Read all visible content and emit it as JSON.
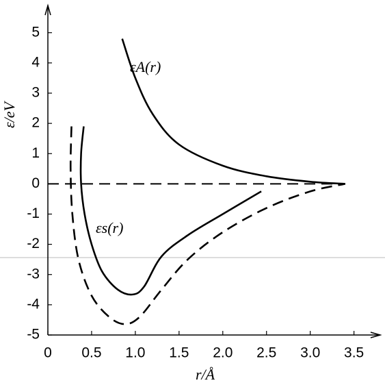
{
  "chart_data": {
    "type": "line",
    "x_label": "r/Å",
    "y_label": "ε/eV",
    "xlim": [
      0,
      3.8
    ],
    "ylim": [
      -5,
      5.9
    ],
    "xticks": [
      0,
      0.5,
      {
        "value": 1,
        "label": "1.0"
      },
      1.5,
      {
        "value": 2,
        "label": "2.0"
      },
      2.5,
      {
        "value": 3,
        "label": "3.0"
      },
      3.5
    ],
    "yticks": [
      -5,
      -4,
      -3,
      -2,
      -1,
      0,
      1,
      2,
      3,
      4,
      5
    ],
    "reference_line": {
      "y": 0,
      "x": [
        0,
        3.4
      ],
      "dashed": true
    },
    "series": [
      {
        "name": "εA(r)",
        "color": "#000000",
        "dashed": false,
        "x": [
          0.85,
          1.0,
          1.2,
          1.5,
          2.0,
          2.5,
          3.0,
          3.4
        ],
        "values": [
          4.8,
          3.5,
          2.3,
          1.3,
          0.6,
          0.25,
          0.07,
          0
        ]
      },
      {
        "name": "εs(r)",
        "color": "#000000",
        "dashed": false,
        "x": [
          0.41,
          0.38,
          0.38,
          0.42,
          0.5,
          0.62,
          0.8,
          0.97,
          1.1,
          1.3,
          1.6,
          2.0,
          2.44
        ],
        "values": [
          1.9,
          1.0,
          0,
          -1,
          -2,
          -2.9,
          -3.5,
          -3.66,
          -3.4,
          -2.4,
          -1.7,
          -1.0,
          -0.25
        ]
      },
      {
        "name": null,
        "color": "#000000",
        "dashed": true,
        "x": [
          0.27,
          0.26,
          0.28,
          0.35,
          0.5,
          0.7,
          0.88,
          1.05,
          1.3,
          1.6,
          2.0,
          2.5,
          3.0,
          3.4
        ],
        "values": [
          1.9,
          0.5,
          -1,
          -2.5,
          -3.7,
          -4.4,
          -4.64,
          -4.4,
          -3.5,
          -2.5,
          -1.6,
          -0.8,
          -0.25,
          0
        ]
      }
    ]
  }
}
